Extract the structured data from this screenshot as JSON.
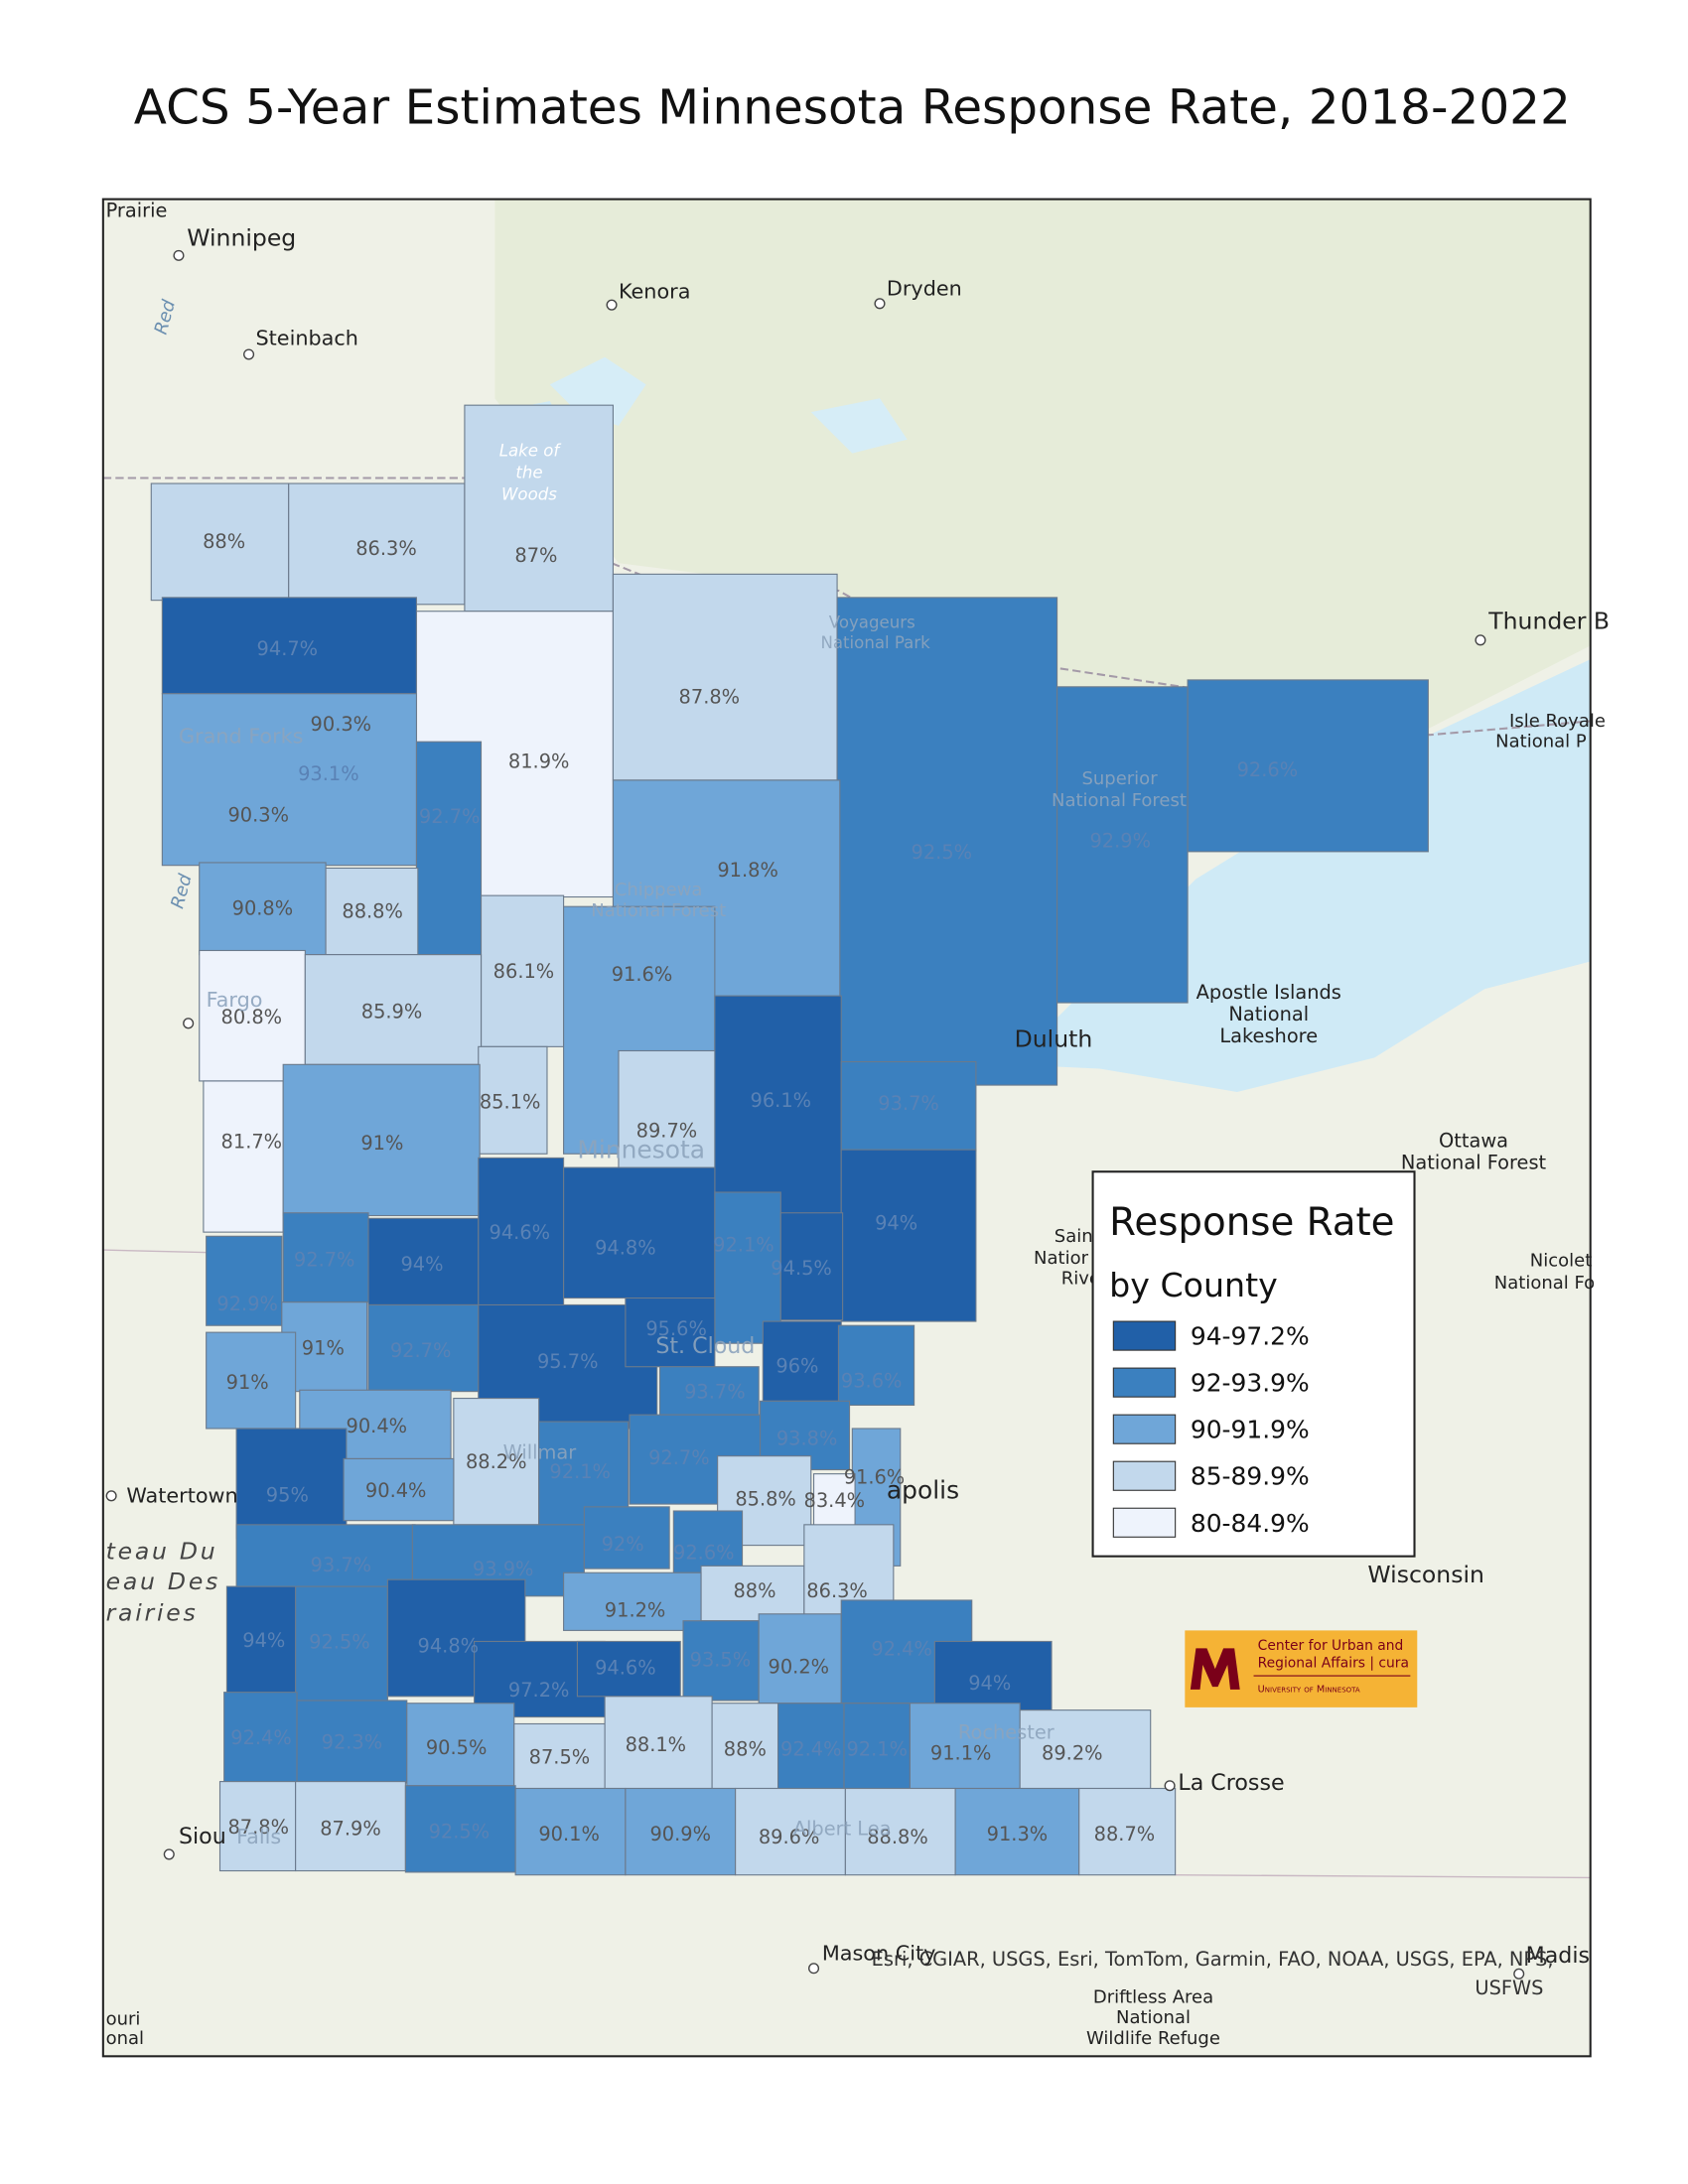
{
  "title": "ACS 5-Year Estimates Minnesota Response Rate, 2018-2022",
  "legend": {
    "title": "Response Rate",
    "subtitle": "by County",
    "items": [
      {
        "label": "94-97.2%",
        "color": "#2160a8"
      },
      {
        "label": "92-93.9%",
        "color": "#3b80bf"
      },
      {
        "label": "90-91.9%",
        "color": "#6fa6d8"
      },
      {
        "label": "85-89.9%",
        "color": "#c2d8ec"
      },
      {
        "label": "80-84.9%",
        "color": "#eef3fc"
      }
    ]
  },
  "counties": [
    {
      "label": "88%",
      "color": "#c2d8ec"
    },
    {
      "label": "86.3%",
      "color": "#c2d8ec"
    },
    {
      "label": "87%",
      "color": "#c2d8ec"
    },
    {
      "label": "94.7%",
      "color": "#2160a8"
    },
    {
      "label": "81.9%",
      "color": "#eef3fc"
    },
    {
      "label": "87.8%",
      "color": "#c2d8ec"
    },
    {
      "label": "92.5%",
      "color": "#3b80bf"
    },
    {
      "label": "92.9%",
      "color": "#3b80bf"
    },
    {
      "label": "92.6%",
      "color": "#3b80bf"
    },
    {
      "label": "90.3%",
      "color": "#6fa6d8"
    },
    {
      "label": "93.1%",
      "color": "#3b80bf"
    },
    {
      "label": "90.3%",
      "color": "#6fa6d8"
    },
    {
      "label": "92.7%",
      "color": "#3b80bf"
    },
    {
      "label": "91.8%",
      "color": "#6fa6d8"
    },
    {
      "label": "90.8%",
      "color": "#6fa6d8"
    },
    {
      "label": "88.8%",
      "color": "#c2d8ec"
    },
    {
      "label": "86.1%",
      "color": "#c2d8ec"
    },
    {
      "label": "91.6%",
      "color": "#6fa6d8"
    },
    {
      "label": "80.8%",
      "color": "#eef3fc"
    },
    {
      "label": "85.9%",
      "color": "#c2d8ec"
    },
    {
      "label": "96.1%",
      "color": "#2160a8"
    },
    {
      "label": "93.7%",
      "color": "#3b80bf"
    },
    {
      "label": "85.1%",
      "color": "#c2d8ec"
    },
    {
      "label": "89.7%",
      "color": "#c2d8ec"
    },
    {
      "label": "81.7%",
      "color": "#eef3fc"
    },
    {
      "label": "91%",
      "color": "#6fa6d8"
    },
    {
      "label": "94%",
      "color": "#2160a8"
    },
    {
      "label": "92.7%",
      "color": "#3b80bf"
    },
    {
      "label": "94%",
      "color": "#2160a8"
    },
    {
      "label": "94.6%",
      "color": "#2160a8"
    },
    {
      "label": "94.8%",
      "color": "#2160a8"
    },
    {
      "label": "92.1%",
      "color": "#3b80bf"
    },
    {
      "label": "94.5%",
      "color": "#2160a8"
    },
    {
      "label": "92.9%",
      "color": "#3b80bf"
    },
    {
      "label": "91%",
      "color": "#6fa6d8"
    },
    {
      "label": "92.7%",
      "color": "#3b80bf"
    },
    {
      "label": "95.7%",
      "color": "#2160a8"
    },
    {
      "label": "95.6%",
      "color": "#2160a8"
    },
    {
      "label": "96%",
      "color": "#2160a8"
    },
    {
      "label": "93.6%",
      "color": "#3b80bf"
    },
    {
      "label": "91%",
      "color": "#6fa6d8"
    },
    {
      "label": "93.7%",
      "color": "#3b80bf"
    },
    {
      "label": "90.4%",
      "color": "#6fa6d8"
    },
    {
      "label": "88.2%",
      "color": "#c2d8ec"
    },
    {
      "label": "92.1%",
      "color": "#3b80bf"
    },
    {
      "label": "92.7%",
      "color": "#3b80bf"
    },
    {
      "label": "93.8%",
      "color": "#3b80bf"
    },
    {
      "label": "91.6%",
      "color": "#6fa6d8"
    },
    {
      "label": "95%",
      "color": "#2160a8"
    },
    {
      "label": "90.4%",
      "color": "#6fa6d8"
    },
    {
      "label": "85.8%",
      "color": "#c2d8ec"
    },
    {
      "label": "83.4%",
      "color": "#eef3fc"
    },
    {
      "label": "93.7%",
      "color": "#3b80bf"
    },
    {
      "label": "93.9%",
      "color": "#3b80bf"
    },
    {
      "label": "92%",
      "color": "#3b80bf"
    },
    {
      "label": "92.6%",
      "color": "#3b80bf"
    },
    {
      "label": "88%",
      "color": "#c2d8ec"
    },
    {
      "label": "86.3%",
      "color": "#c2d8ec"
    },
    {
      "label": "91.2%",
      "color": "#6fa6d8"
    },
    {
      "label": "94%",
      "color": "#2160a8"
    },
    {
      "label": "92.5%",
      "color": "#3b80bf"
    },
    {
      "label": "94.8%",
      "color": "#2160a8"
    },
    {
      "label": "97.2%",
      "color": "#2160a8"
    },
    {
      "label": "94.6%",
      "color": "#2160a8"
    },
    {
      "label": "93.5%",
      "color": "#3b80bf"
    },
    {
      "label": "90.2%",
      "color": "#6fa6d8"
    },
    {
      "label": "92.4%",
      "color": "#3b80bf"
    },
    {
      "label": "94%",
      "color": "#2160a8"
    },
    {
      "label": "92.4%",
      "color": "#3b80bf"
    },
    {
      "label": "92.3%",
      "color": "#3b80bf"
    },
    {
      "label": "90.5%",
      "color": "#6fa6d8"
    },
    {
      "label": "87.5%",
      "color": "#c2d8ec"
    },
    {
      "label": "88.1%",
      "color": "#c2d8ec"
    },
    {
      "label": "88%",
      "color": "#c2d8ec"
    },
    {
      "label": "92.4%",
      "color": "#3b80bf"
    },
    {
      "label": "92.1%",
      "color": "#3b80bf"
    },
    {
      "label": "91.1%",
      "color": "#6fa6d8"
    },
    {
      "label": "89.2%",
      "color": "#c2d8ec"
    },
    {
      "label": "87.8%",
      "color": "#c2d8ec"
    },
    {
      "label": "87.9%",
      "color": "#c2d8ec"
    },
    {
      "label": "92.5%",
      "color": "#3b80bf"
    },
    {
      "label": "90.1%",
      "color": "#6fa6d8"
    },
    {
      "label": "90.9%",
      "color": "#6fa6d8"
    },
    {
      "label": "89.6%",
      "color": "#c2d8ec"
    },
    {
      "label": "88.8%",
      "color": "#c2d8ec"
    },
    {
      "label": "91.3%",
      "color": "#6fa6d8"
    },
    {
      "label": "88.7%",
      "color": "#c2d8ec"
    }
  ],
  "places": [
    "Prairie",
    "Winnipeg",
    "Steinbach",
    "Kenora",
    "Dryden",
    "Thunder B",
    "Isle Royale",
    "National P",
    "Grand Forks",
    "Voyageurs",
    "National Park",
    "Superior",
    "National Forest",
    "Chippewa",
    "National Forest",
    "Fargo",
    "Apostle Islands",
    "National",
    "Lakeshore",
    "Duluth",
    "Minnesota",
    "Ottawa",
    "National Forest",
    "St. Cloud",
    "Sain",
    "Natior",
    "Rive",
    "Nicolet",
    "National Fo",
    "Watertown",
    "teau Du",
    "eau Des",
    "rairies",
    "Willmar",
    "apolis",
    "Wisconsin",
    "Rochester",
    "La Crosse",
    "Siou",
    "Falls",
    "Albert Lea",
    "Mason City",
    "Madis",
    "Driftless Area",
    "National",
    "Wildlife Refuge",
    "ouri",
    "onal",
    "Red",
    "Red",
    "Lake of",
    "the",
    "Woods"
  ],
  "attribution": [
    "Esri, CGIAR, USGS, Esri, TomTom, Garmin, FAO, NOAA, USGS, EPA, NPS,",
    "USFWS"
  ],
  "logo": {
    "lines": [
      "Center for Urban and",
      "Regional Affairs | cura",
      "University of Minnesota"
    ]
  }
}
